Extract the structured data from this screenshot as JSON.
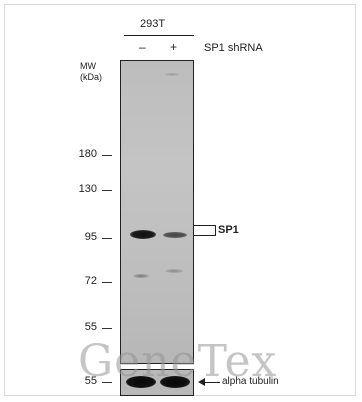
{
  "cell_line": "293T",
  "lanes": {
    "minus": "–",
    "plus": "+"
  },
  "treatment_label": "SP1 shRNA",
  "mw_header": {
    "line1": "MW",
    "line2": "(kDa)"
  },
  "markers": [
    "180",
    "130",
    "95",
    "72",
    "55"
  ],
  "loading_marker": "55",
  "target_label": "SP1",
  "loading_label": "alpha tubulin",
  "watermark": "GeneTex"
}
